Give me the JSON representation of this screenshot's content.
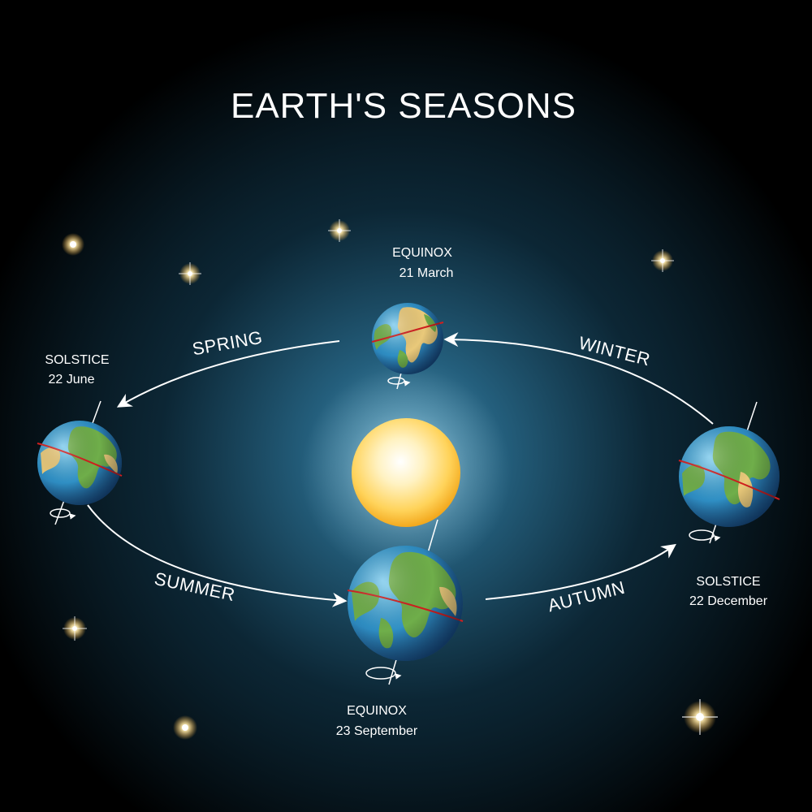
{
  "title": "EARTH'S SEASONS",
  "seasons": {
    "spring": "SPRING",
    "summer": "SUMMER",
    "autumn": "AUTUMN",
    "winter": "WINTER"
  },
  "events": {
    "march": {
      "name": "EQUINOX",
      "date": "21 March"
    },
    "june": {
      "name": "SOLSTICE",
      "date": "22 June"
    },
    "september": {
      "name": "EQUINOX",
      "date": "23 September"
    },
    "december": {
      "name": "SOLSTICE",
      "date": "22 December"
    }
  },
  "colors": {
    "background": "#000000",
    "glow": "#2a6f92",
    "sun": "#ffe070",
    "ocean": "#2f8fc4",
    "land": "#6fae4a",
    "equator": "#d21e1e",
    "orbit": "#ffffff"
  }
}
